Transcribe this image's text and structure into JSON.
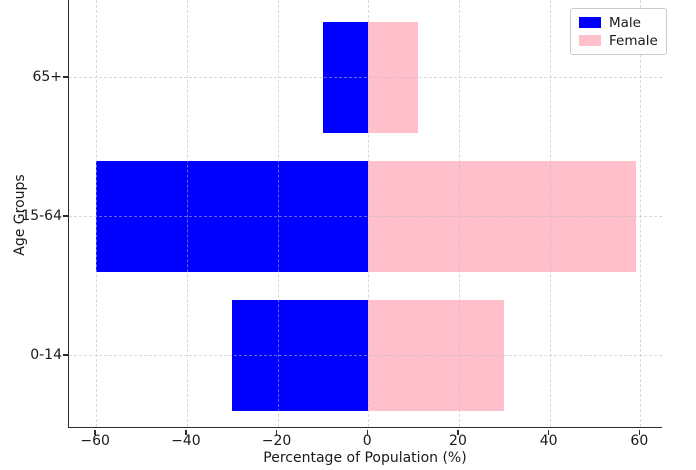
{
  "chart_data": {
    "type": "bar",
    "orientation": "horizontal",
    "title": "",
    "xlabel": "Percentage of Population (%)",
    "ylabel": "Age Groups",
    "categories": [
      "0-14",
      "15-64",
      "65+"
    ],
    "series": [
      {
        "name": "Male",
        "color": "#0000ff",
        "values": [
          -30,
          -60,
          -10
        ]
      },
      {
        "name": "Female",
        "color": "#ffc0cb",
        "values": [
          30,
          59,
          11
        ]
      }
    ],
    "xlim": [
      -66,
      65
    ],
    "x_ticks": [
      -60,
      -40,
      -20,
      0,
      20,
      40,
      60
    ],
    "x_tick_labels": [
      "−60",
      "−40",
      "−20",
      "0",
      "20",
      "40",
      "60"
    ],
    "grid": true,
    "grid_style": "dashed",
    "legend_position": "upper right"
  },
  "colors": {
    "male": "#0000ff",
    "female": "#ffc0cb",
    "spine": "#2b2b2b",
    "text": "#1a1a1a",
    "grid": "#bdbdbd",
    "legend_border": "#cccccc",
    "background": "#ffffff"
  }
}
